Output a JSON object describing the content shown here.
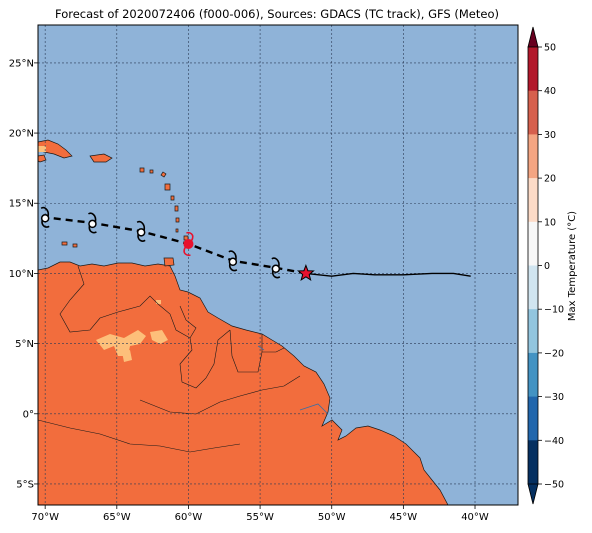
{
  "title": "Forecast of 2020072406 (f000-006), Sources: GDACS (TC track), GFS (Meteo)",
  "map": {
    "lon_range": [
      -70.5,
      -37.0
    ],
    "lat_range": [
      -6.5,
      27.7
    ],
    "lon_ticks": [
      {
        "value": -70,
        "label": "70°W"
      },
      {
        "value": -65,
        "label": "65°W"
      },
      {
        "value": -60,
        "label": "60°W"
      },
      {
        "value": -55,
        "label": "55°W"
      },
      {
        "value": -50,
        "label": "50°W"
      },
      {
        "value": -45,
        "label": "45°W"
      },
      {
        "value": -40,
        "label": "40°W"
      }
    ],
    "lat_ticks": [
      {
        "value": 25,
        "label": "25°N"
      },
      {
        "value": 20,
        "label": "20°N"
      },
      {
        "value": 15,
        "label": "15°N"
      },
      {
        "value": 10,
        "label": "10°N"
      },
      {
        "value": 5,
        "label": "5°N"
      },
      {
        "value": 0,
        "label": "0°"
      },
      {
        "value": -5,
        "label": "5°S"
      }
    ],
    "grid": true,
    "ocean_color": "#8fb3d8",
    "land_color": "#f26d3d",
    "warm_land_color": "#fdbf7a"
  },
  "colorbar": {
    "label": "Max Temperature (°C)",
    "ticks": [
      "50",
      "40",
      "30",
      "20",
      "10",
      "0",
      "−10",
      "−20",
      "−30",
      "−40",
      "−50"
    ],
    "colors": [
      "#67001f",
      "#b2182b",
      "#d6604d",
      "#f4a582",
      "#fddbc7",
      "#f7f7f7",
      "#d1e5f0",
      "#92c5de",
      "#4393c3",
      "#2166ac",
      "#053061"
    ],
    "range": [
      -50,
      50
    ]
  },
  "track": {
    "past": [
      {
        "lon": -40.3,
        "lat": 9.8
      },
      {
        "lon": -41.5,
        "lat": 10.0
      },
      {
        "lon": -43.0,
        "lat": 10.0
      },
      {
        "lon": -45.0,
        "lat": 9.9
      },
      {
        "lon": -47.0,
        "lat": 9.9
      },
      {
        "lon": -48.5,
        "lat": 10.0
      },
      {
        "lon": -50.0,
        "lat": 9.8
      },
      {
        "lon": -51.8,
        "lat": 10.0
      }
    ],
    "current": {
      "lon": -51.8,
      "lat": 10.0
    },
    "forecast": [
      {
        "lon": -51.8,
        "lat": 10.0,
        "cat": "tropical storm"
      },
      {
        "lon": -53.9,
        "lat": 10.4,
        "cat": "tropical storm"
      },
      {
        "lon": -56.9,
        "lat": 10.9,
        "cat": "tropical storm"
      },
      {
        "lon": -60.0,
        "lat": 12.1,
        "cat": "hurricane"
      },
      {
        "lon": -63.3,
        "lat": 13.0,
        "cat": "tropical storm"
      },
      {
        "lon": -66.7,
        "lat": 13.6,
        "cat": "tropical storm"
      },
      {
        "lon": -70.0,
        "lat": 14.0,
        "cat": "tropical storm"
      }
    ]
  }
}
